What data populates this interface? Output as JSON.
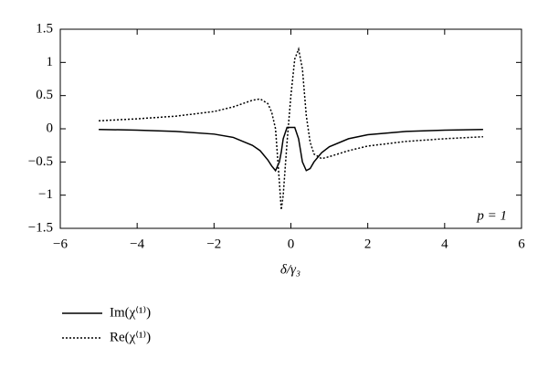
{
  "chart_data": {
    "type": "line",
    "xlabel": "δ/γ₃",
    "annotation": "p = 1",
    "x": [
      -5,
      -4,
      -3,
      -2,
      -1.5,
      -1,
      -0.8,
      -0.6,
      -0.5,
      -0.4,
      -0.3,
      -0.25,
      -0.2,
      -0.1,
      0,
      0.1,
      0.2,
      0.3,
      0.4,
      0.5,
      0.6,
      0.8,
      1,
      1.5,
      2,
      3,
      4,
      5
    ],
    "series": [
      {
        "name": "Im(χ⁽¹⁾)",
        "color": "#000000",
        "linestyle": "solid",
        "values": [
          -0.01,
          -0.02,
          -0.04,
          -0.08,
          -0.13,
          -0.25,
          -0.33,
          -0.47,
          -0.56,
          -0.63,
          -0.5,
          -0.35,
          -0.15,
          0.02,
          0.02,
          0.02,
          -0.15,
          -0.5,
          -0.63,
          -0.6,
          -0.5,
          -0.36,
          -0.27,
          -0.15,
          -0.09,
          -0.04,
          -0.02,
          -0.01
        ]
      },
      {
        "name": "Re(χ⁽¹⁾)",
        "color": "#000000",
        "linestyle": "dotted",
        "values": [
          0.12,
          0.15,
          0.19,
          0.26,
          0.33,
          0.43,
          0.45,
          0.38,
          0.25,
          0.0,
          -0.8,
          -1.22,
          -1.0,
          -0.2,
          0.5,
          1.05,
          1.2,
          0.9,
          0.2,
          -0.2,
          -0.38,
          -0.45,
          -0.42,
          -0.33,
          -0.26,
          -0.19,
          -0.15,
          -0.12
        ]
      }
    ],
    "xlim": [
      -6,
      6
    ],
    "xticks": [
      {
        "value": -6,
        "label": "−6"
      },
      {
        "value": -4,
        "label": "−4"
      },
      {
        "value": -2,
        "label": "−2"
      },
      0,
      2,
      4,
      6
    ],
    "ylim": [
      -1.5,
      1.5
    ],
    "yticks": [
      {
        "value": -1.5,
        "label": "−1.5"
      },
      {
        "value": -1,
        "label": "−1"
      },
      {
        "value": -0.5,
        "label": "−0.5"
      },
      0,
      0.5,
      1,
      1.5
    ],
    "grid": false,
    "legend": "bottom-left-outside"
  }
}
